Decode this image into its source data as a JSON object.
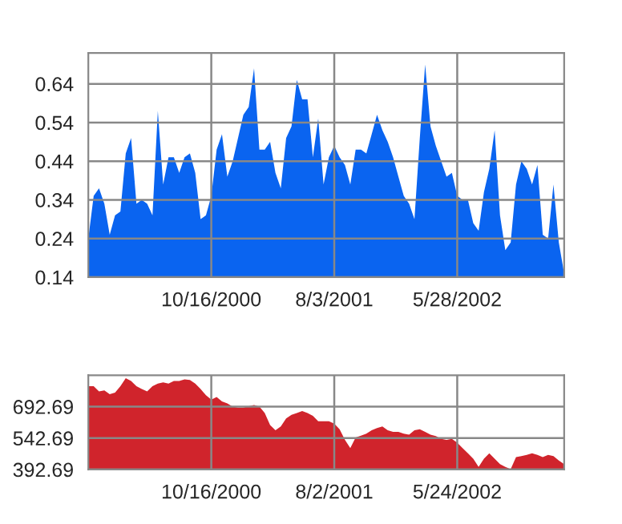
{
  "chart_data": [
    {
      "type": "area",
      "categories": [
        null,
        null,
        null,
        null,
        null,
        null,
        null,
        null,
        null,
        null,
        null,
        null,
        null,
        null,
        null,
        null,
        null,
        null,
        null,
        null,
        null,
        null,
        null,
        "10/16/2000",
        null,
        null,
        null,
        null,
        null,
        null,
        null,
        null,
        null,
        null,
        null,
        null,
        null,
        null,
        null,
        null,
        null,
        null,
        null,
        null,
        null,
        null,
        "8/3/2001",
        null,
        null,
        null,
        null,
        null,
        null,
        null,
        null,
        null,
        null,
        null,
        null,
        null,
        null,
        null,
        null,
        null,
        null,
        null,
        null,
        null,
        null,
        "5/28/2002",
        null,
        null,
        null,
        null,
        null,
        null,
        null,
        null,
        null,
        null,
        null,
        null,
        null,
        null,
        null,
        null,
        null,
        null,
        null,
        null
      ],
      "series": [
        {
          "color": "#0a64f0",
          "values": [
            0.24,
            0.35,
            0.37,
            0.33,
            0.25,
            0.3,
            0.31,
            0.46,
            0.5,
            0.33,
            0.34,
            0.33,
            0.3,
            0.57,
            0.38,
            0.45,
            0.45,
            0.41,
            0.45,
            0.46,
            0.41,
            0.29,
            0.3,
            0.35,
            0.47,
            0.51,
            0.4,
            0.44,
            0.5,
            0.56,
            0.58,
            0.68,
            0.47,
            0.47,
            0.49,
            0.41,
            0.37,
            0.5,
            0.53,
            0.65,
            0.6,
            0.6,
            0.45,
            0.55,
            0.38,
            0.45,
            0.48,
            0.45,
            0.43,
            0.38,
            0.47,
            0.47,
            0.46,
            0.51,
            0.56,
            0.52,
            0.49,
            0.45,
            0.4,
            0.35,
            0.33,
            0.29,
            0.5,
            0.69,
            0.53,
            0.48,
            0.44,
            0.4,
            0.41,
            0.35,
            0.34,
            0.34,
            0.28,
            0.26,
            0.36,
            0.42,
            0.52,
            0.3,
            0.21,
            0.23,
            0.38,
            0.44,
            0.42,
            0.38,
            0.43,
            0.25,
            0.24,
            0.38,
            0.23,
            0.15
          ]
        }
      ],
      "ylim": [
        0.14,
        0.72
      ],
      "yticks": [
        0.14,
        0.24,
        0.34,
        0.44,
        0.54,
        0.64
      ],
      "grid": true
    },
    {
      "type": "area",
      "categories": [
        null,
        null,
        null,
        null,
        null,
        null,
        null,
        null,
        null,
        null,
        null,
        null,
        null,
        null,
        null,
        null,
        null,
        null,
        null,
        null,
        null,
        null,
        null,
        "10/16/2000",
        null,
        null,
        null,
        null,
        null,
        null,
        null,
        null,
        null,
        null,
        null,
        null,
        null,
        null,
        null,
        null,
        null,
        null,
        null,
        null,
        null,
        null,
        "8/2/2001",
        null,
        null,
        null,
        null,
        null,
        null,
        null,
        null,
        null,
        null,
        null,
        null,
        null,
        null,
        null,
        null,
        null,
        null,
        null,
        null,
        null,
        null,
        "5/24/2002",
        null,
        null,
        null,
        null,
        null,
        null,
        null,
        null,
        null,
        null,
        null,
        null,
        null,
        null,
        null,
        null,
        null,
        null,
        null,
        null
      ],
      "series": [
        {
          "color": "#d0242c",
          "values": [
            790,
            790,
            765,
            770,
            752,
            760,
            790,
            828,
            815,
            790,
            777,
            765,
            790,
            803,
            808,
            803,
            815,
            815,
            823,
            820,
            803,
            777,
            747,
            726,
            739,
            718,
            708,
            693,
            688,
            688,
            695,
            700,
            693,
            662,
            605,
            580,
            598,
            636,
            654,
            662,
            672,
            662,
            649,
            623,
            623,
            623,
            611,
            585,
            534,
            495,
            546,
            554,
            564,
            580,
            590,
            598,
            580,
            572,
            572,
            564,
            559,
            580,
            585,
            572,
            559,
            552,
            539,
            534,
            539,
            521,
            495,
            470,
            444,
            405,
            444,
            470,
            444,
            418,
            405,
            395,
            452,
            457,
            462,
            470,
            462,
            452,
            462,
            457,
            436,
            418
          ]
        }
      ],
      "ylim": [
        392.69,
        842.69
      ],
      "yticks": [
        392.69,
        542.69,
        692.69
      ],
      "grid": true
    }
  ]
}
